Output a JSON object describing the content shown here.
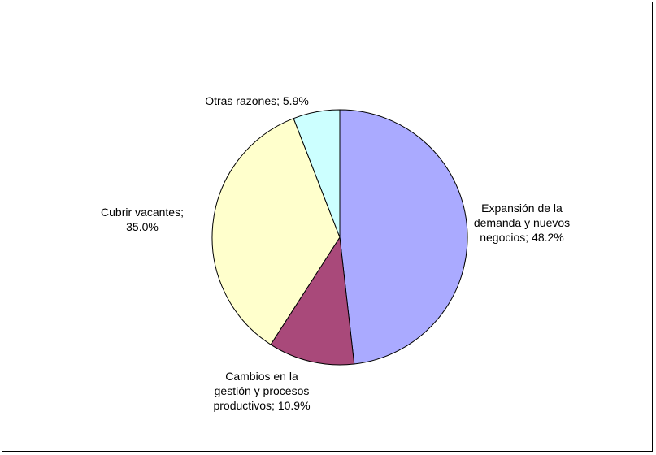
{
  "chart_data": {
    "type": "pie",
    "title": "",
    "slices": [
      {
        "name": "Expansión de la demanda y nuevos negocios",
        "value": 48.2,
        "color": "#aaaaff",
        "label_lines": [
          "Expansión de la",
          "demanda y nuevos",
          "negocios; 48.2%"
        ]
      },
      {
        "name": "Cambios en la gestión y procesos productivos",
        "value": 10.9,
        "color": "#a9497a",
        "label_lines": [
          "Cambios en la",
          "gestión y procesos",
          "productivos; 10.9%"
        ]
      },
      {
        "name": "Cubrir vacantes",
        "value": 35.0,
        "color": "#ffffcc",
        "label_lines": [
          "Cubrir vacantes;",
          "35.0%"
        ]
      },
      {
        "name": "Otras razones",
        "value": 5.9,
        "color": "#ccffff",
        "label_lines": [
          "Otras razones; 5.9%"
        ]
      }
    ],
    "start_angle_deg": 0,
    "direction": "clockwise",
    "legend": "none",
    "data_labels": "outside"
  }
}
